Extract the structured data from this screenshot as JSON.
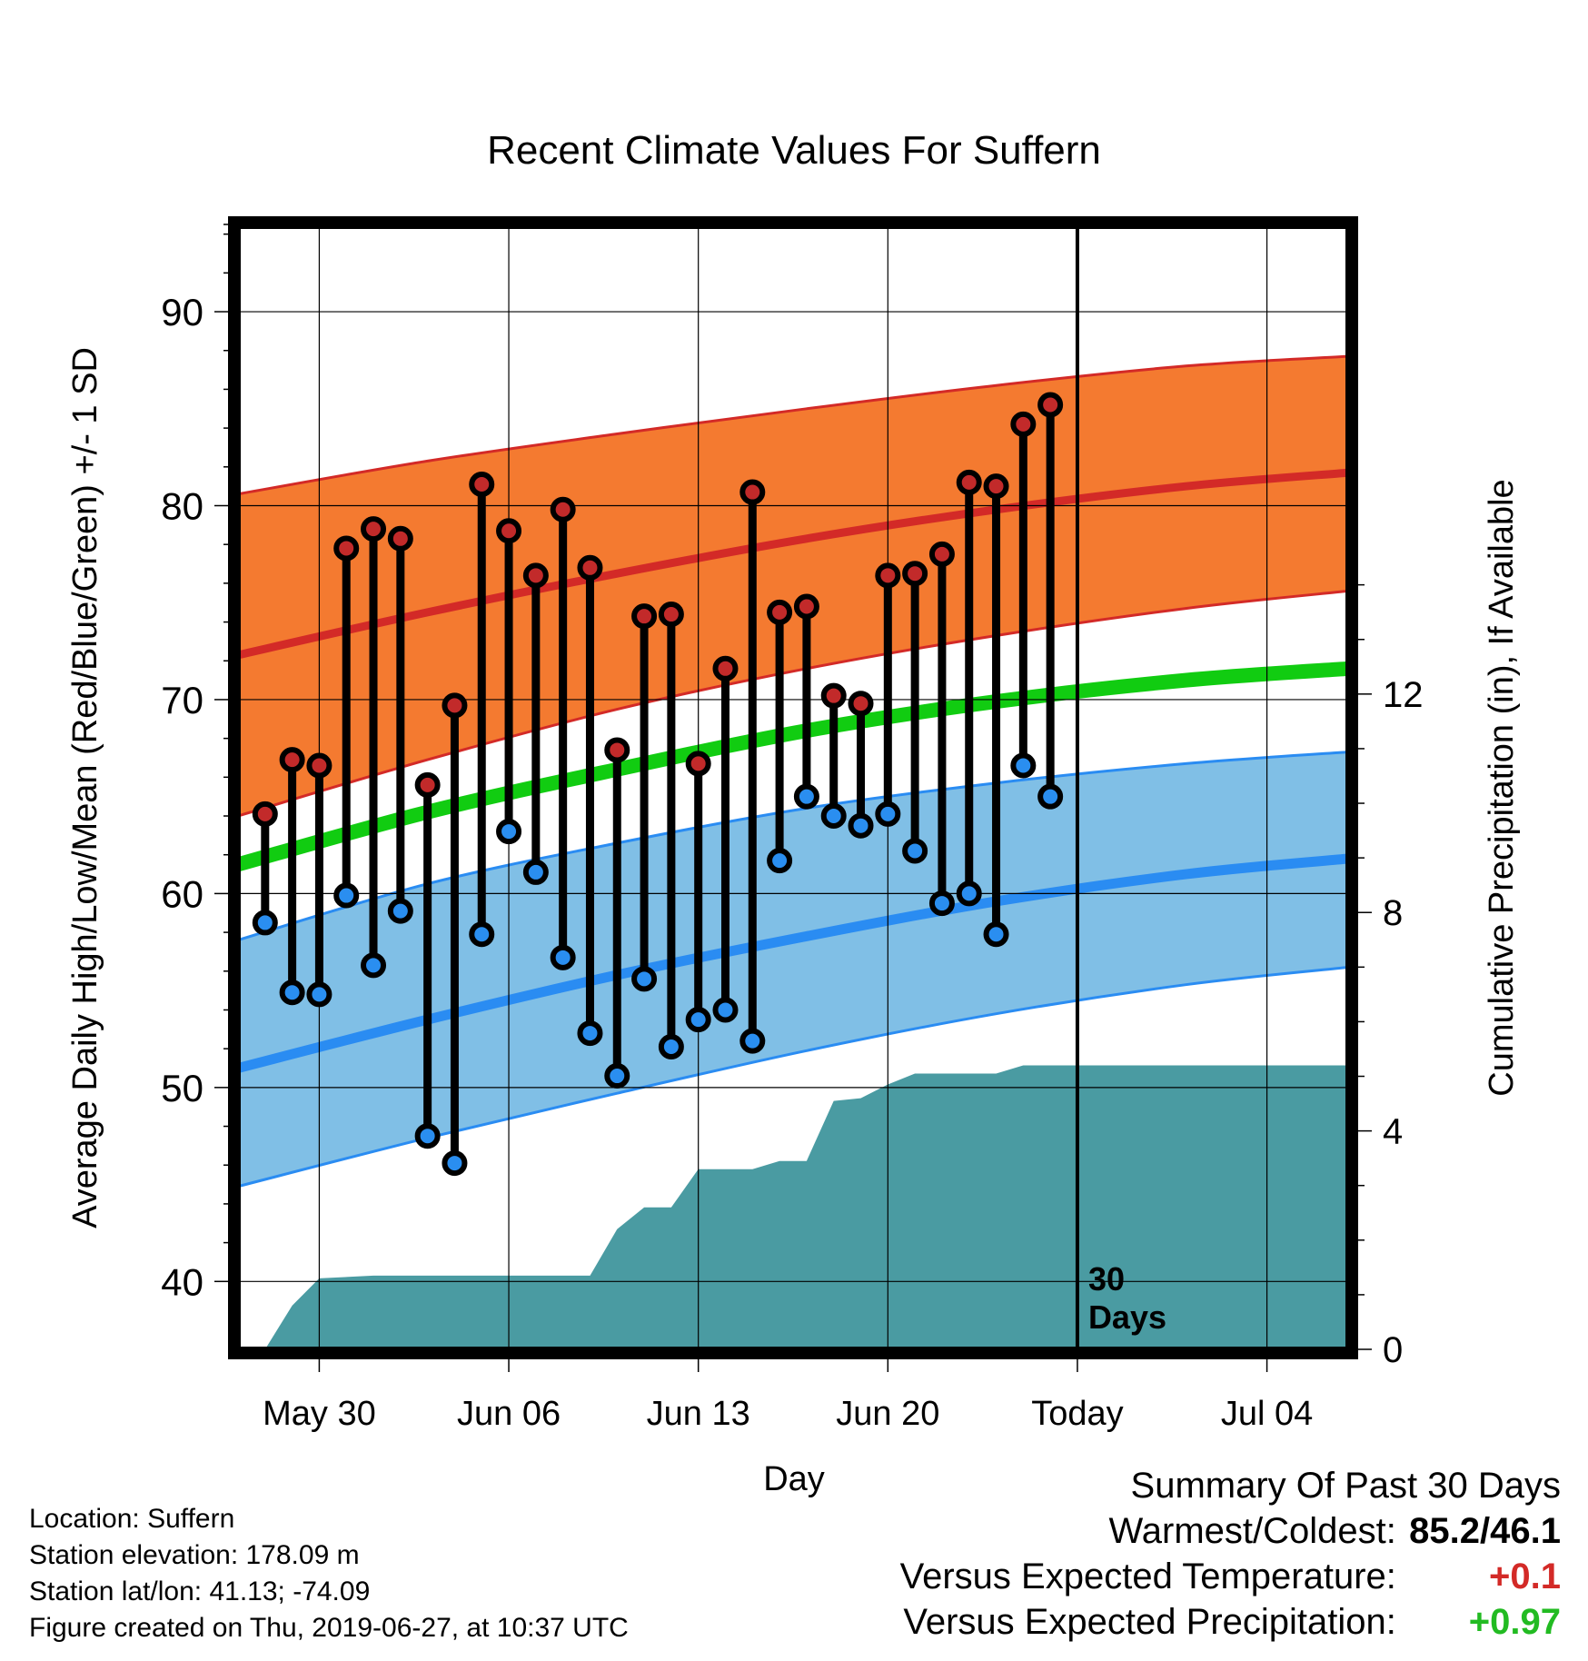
{
  "chart_data": {
    "type": "line",
    "title": "Recent Climate Values For Suffern",
    "xlabel": "Day",
    "ylabel_left": "Average Daily High/Low/Mean (Red/Blue/Green) +/- 1 SD",
    "ylabel_right": "Cumulative Precipitation (in), If Available",
    "left_axis": {
      "range": [
        36.5,
        94.5
      ],
      "ticks": [
        40,
        50,
        60,
        70,
        80,
        90
      ],
      "tick_labels": [
        "40",
        "50",
        "60",
        "70",
        "80",
        "90"
      ]
    },
    "right_axis": {
      "range": [
        0,
        20.6
      ],
      "ticks": [
        0,
        4,
        8,
        12
      ],
      "tick_labels": [
        "0",
        "4",
        "8",
        "12"
      ]
    },
    "x_axis": {
      "range": [
        "2019-05-27",
        "2019-07-07"
      ],
      "ticks": [
        "2019-05-30",
        "2019-06-06",
        "2019-06-13",
        "2019-06-20",
        "2019-06-27",
        "2019-07-04"
      ],
      "tick_labels": [
        "May 30",
        "Jun 06",
        "Jun 13",
        "Jun 20",
        "Today",
        "Jul 04"
      ]
    },
    "grid": true,
    "today": "2019-06-27",
    "today_label": [
      "30",
      "Days"
    ],
    "observed": [
      {
        "date": "2019-05-28",
        "high": 64.1,
        "low": 58.5
      },
      {
        "date": "2019-05-29",
        "high": 66.9,
        "low": 54.9
      },
      {
        "date": "2019-05-30",
        "high": 66.6,
        "low": 54.8
      },
      {
        "date": "2019-05-31",
        "high": 77.8,
        "low": 59.9
      },
      {
        "date": "2019-06-01",
        "high": 78.8,
        "low": 56.3
      },
      {
        "date": "2019-06-02",
        "high": 78.3,
        "low": 59.1
      },
      {
        "date": "2019-06-03",
        "high": 65.6,
        "low": 47.5
      },
      {
        "date": "2019-06-04",
        "high": 69.7,
        "low": 46.1
      },
      {
        "date": "2019-06-05",
        "high": 81.1,
        "low": 57.9
      },
      {
        "date": "2019-06-06",
        "high": 78.7,
        "low": 63.2
      },
      {
        "date": "2019-06-07",
        "high": 76.4,
        "low": 61.1
      },
      {
        "date": "2019-06-08",
        "high": 79.8,
        "low": 56.7
      },
      {
        "date": "2019-06-09",
        "high": 76.8,
        "low": 52.8
      },
      {
        "date": "2019-06-10",
        "high": 67.4,
        "low": 50.6
      },
      {
        "date": "2019-06-11",
        "high": 74.3,
        "low": 55.6
      },
      {
        "date": "2019-06-12",
        "high": 74.4,
        "low": 52.1
      },
      {
        "date": "2019-06-13",
        "high": 66.7,
        "low": 53.5
      },
      {
        "date": "2019-06-14",
        "high": 71.6,
        "low": 54.0
      },
      {
        "date": "2019-06-15",
        "high": 80.7,
        "low": 52.4
      },
      {
        "date": "2019-06-16",
        "high": 74.5,
        "low": 61.7
      },
      {
        "date": "2019-06-17",
        "high": 74.8,
        "low": 65.0
      },
      {
        "date": "2019-06-18",
        "high": 70.2,
        "low": 64.0
      },
      {
        "date": "2019-06-19",
        "high": 69.8,
        "low": 63.5
      },
      {
        "date": "2019-06-20",
        "high": 76.4,
        "low": 64.1
      },
      {
        "date": "2019-06-21",
        "high": 76.5,
        "low": 62.2
      },
      {
        "date": "2019-06-22",
        "high": 77.5,
        "low": 59.5
      },
      {
        "date": "2019-06-23",
        "high": 81.2,
        "low": 60.0
      },
      {
        "date": "2019-06-24",
        "high": 81.0,
        "low": 57.9
      },
      {
        "date": "2019-06-25",
        "high": 84.2,
        "low": 66.6
      },
      {
        "date": "2019-06-26",
        "high": 85.2,
        "low": 65.0
      }
    ],
    "normal_high": {
      "dates": [
        "2019-05-27",
        "2019-06-03",
        "2019-06-10",
        "2019-06-17",
        "2019-06-24",
        "2019-07-01",
        "2019-07-07"
      ],
      "mean": [
        72.3,
        74.5,
        76.5,
        78.3,
        79.8,
        81.0,
        81.7
      ],
      "upper": [
        80.6,
        82.3,
        83.7,
        85.0,
        86.2,
        87.2,
        87.7
      ],
      "lower": [
        64.0,
        66.9,
        69.5,
        71.6,
        73.3,
        74.7,
        75.6
      ]
    },
    "normal_low": {
      "dates": [
        "2019-05-27",
        "2019-06-03",
        "2019-06-10",
        "2019-06-17",
        "2019-06-24",
        "2019-07-01",
        "2019-07-07"
      ],
      "mean": [
        51.0,
        53.5,
        55.8,
        57.8,
        59.6,
        61.0,
        61.8
      ],
      "upper": [
        57.6,
        60.5,
        62.6,
        64.4,
        65.7,
        66.7,
        67.3
      ],
      "lower": [
        44.9,
        47.4,
        49.7,
        51.9,
        53.8,
        55.3,
        56.2
      ]
    },
    "normal_mean": {
      "dates": [
        "2019-05-27",
        "2019-06-03",
        "2019-06-10",
        "2019-06-17",
        "2019-06-24",
        "2019-07-01",
        "2019-07-07"
      ],
      "values": [
        61.5,
        64.2,
        66.4,
        68.4,
        69.9,
        71.0,
        71.6
      ]
    },
    "precipitation_cumulative": {
      "dates": [
        "2019-05-28",
        "2019-05-29",
        "2019-05-30",
        "2019-06-01",
        "2019-06-09",
        "2019-06-10",
        "2019-06-11",
        "2019-06-12",
        "2019-06-13",
        "2019-06-15",
        "2019-06-16",
        "2019-06-17",
        "2019-06-18",
        "2019-06-19",
        "2019-06-20",
        "2019-06-21",
        "2019-06-22",
        "2019-06-24",
        "2019-06-25",
        "2019-06-26",
        "2019-07-07"
      ],
      "values": [
        0.0,
        0.8,
        1.3,
        1.35,
        1.35,
        2.2,
        2.6,
        2.6,
        3.3,
        3.3,
        3.45,
        3.45,
        4.55,
        4.6,
        4.85,
        5.05,
        5.05,
        5.05,
        5.2,
        5.2,
        5.2
      ]
    },
    "colors": {
      "high_band": "#f47a30",
      "high_line": "#d32a27",
      "low_band": "#80bfe6",
      "low_line": "#2a8cf2",
      "mean_line": "#11cc11",
      "precip": "#4a9ba2",
      "high_dot": "#c22a2a",
      "low_dot": "#2a8ef0"
    }
  },
  "footer": {
    "location": "Location: Suffern",
    "elevation": "Station elevation: 178.09 m",
    "latlon": "Station lat/lon: 41.13; -74.09",
    "created": "Figure created on Thu, 2019-06-27, at 10:37 UTC"
  },
  "summary": {
    "title": "Summary Of Past 30 Days",
    "warmest_coldest_label": "Warmest/Coldest:",
    "warmest_coldest_value": "85.2/46.1",
    "temp_label": "Versus Expected Temperature:",
    "temp_value": "+0.1",
    "temp_color": "#d32a27",
    "precip_label": "Versus Expected Precipitation:",
    "precip_value": "+0.97",
    "precip_color": "#22bb22"
  }
}
